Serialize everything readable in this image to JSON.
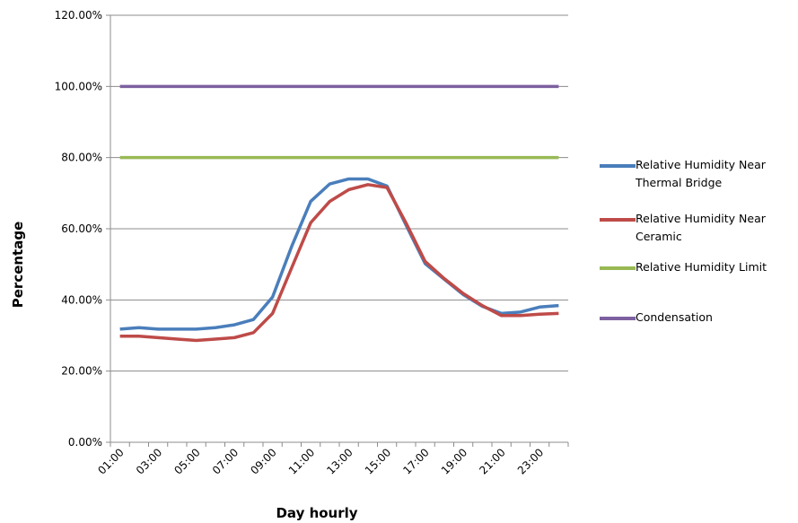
{
  "chart_data": {
    "type": "line",
    "xlabel": "Day hourly",
    "ylabel": "Percentage",
    "ylim": [
      0,
      120
    ],
    "y_tick_labels": [
      "0.00%",
      "20.00%",
      "40.00%",
      "60.00%",
      "80.00%",
      "100.00%",
      "120.00%"
    ],
    "x": [
      "01:00",
      "02:00",
      "03:00",
      "04:00",
      "05:00",
      "06:00",
      "07:00",
      "08:00",
      "09:00",
      "10:00",
      "11:00",
      "12:00",
      "13:00",
      "14:00",
      "15:00",
      "16:00",
      "17:00",
      "18:00",
      "19:00",
      "20:00",
      "21:00",
      "22:00",
      "23:00",
      "24:00"
    ],
    "x_tick_labels": [
      "01:00",
      "03:00",
      "05:00",
      "07:00",
      "09:00",
      "11:00",
      "13:00",
      "15:00",
      "17:00",
      "19:00",
      "21:00",
      "23:00"
    ],
    "grid": "horizontal",
    "legend_position": "right",
    "series": [
      {
        "name": "Relative Humidity Near Thermal Bridge",
        "color": "#4a7ebb",
        "values": [
          31.8,
          32.2,
          31.8,
          31.8,
          31.8,
          32.2,
          33.0,
          34.5,
          40.8,
          55.0,
          67.7,
          72.6,
          74.0,
          74.0,
          72.0,
          61.0,
          50.2,
          45.8,
          41.5,
          38.2,
          36.2,
          36.6,
          38.0,
          38.4
        ]
      },
      {
        "name": "Relative Humidity Near Ceramic",
        "color": "#be4b48",
        "values": [
          29.8,
          29.8,
          29.4,
          29.0,
          28.6,
          29.0,
          29.4,
          30.8,
          36.2,
          49.0,
          61.7,
          67.7,
          71.0,
          72.4,
          71.6,
          61.6,
          50.8,
          46.0,
          41.8,
          38.4,
          35.6,
          35.6,
          36.0,
          36.2
        ]
      },
      {
        "name": "Relative Humidity Limit",
        "color": "#98b954",
        "values": [
          80,
          80,
          80,
          80,
          80,
          80,
          80,
          80,
          80,
          80,
          80,
          80,
          80,
          80,
          80,
          80,
          80,
          80,
          80,
          80,
          80,
          80,
          80,
          80
        ]
      },
      {
        "name": "Condensation",
        "color": "#7d60a0",
        "values": [
          100,
          100,
          100,
          100,
          100,
          100,
          100,
          100,
          100,
          100,
          100,
          100,
          100,
          100,
          100,
          100,
          100,
          100,
          100,
          100,
          100,
          100,
          100,
          100
        ]
      }
    ]
  }
}
